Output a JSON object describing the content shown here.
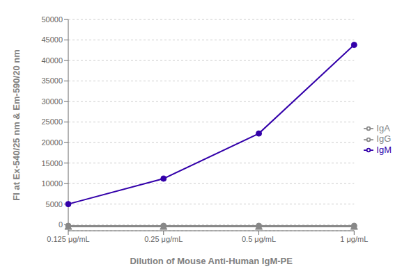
{
  "chart_data": {
    "type": "line",
    "categories": [
      "0.125 μg/mL",
      "0.25 μg/mL",
      "0.5 μg/mL",
      "1 μg/mL"
    ],
    "series": [
      {
        "name": "IgM",
        "color": "#3300AA",
        "marker": "circle",
        "values": [
          5000,
          11200,
          22200,
          43800
        ]
      },
      {
        "name": "IgG",
        "color": "#888888",
        "marker": "circle",
        "values": [
          -300,
          -300,
          -300,
          -300
        ]
      },
      {
        "name": "IgA",
        "color": "#888888",
        "marker": "triangle",
        "values": [
          -500,
          -500,
          -500,
          -500
        ]
      }
    ],
    "xlabel": "Dilution of Mouse Anti-Human IgM-PE",
    "ylabel": "FI at Ex-540/25 nm & Em-590/20 nm",
    "ylim": [
      -1500,
      50000
    ],
    "yticks": [
      0,
      5000,
      10000,
      15000,
      20000,
      25000,
      30000,
      35000,
      40000,
      45000,
      50000
    ],
    "grid": true,
    "legend": "right"
  }
}
